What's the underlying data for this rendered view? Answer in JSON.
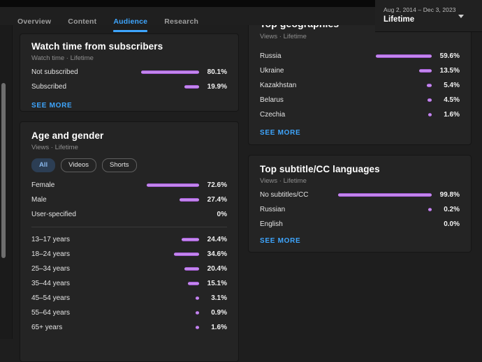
{
  "header": {
    "tabs": [
      {
        "label": "Overview",
        "active": false
      },
      {
        "label": "Content",
        "active": false
      },
      {
        "label": "Audience",
        "active": true
      },
      {
        "label": "Research",
        "active": false
      }
    ],
    "date_range": {
      "range": "Aug 2, 2014 – Dec 3, 2023",
      "preset": "Lifetime"
    }
  },
  "cards": {
    "watch_time": {
      "title": "Watch time from subscribers",
      "subtitle": "Watch time · Lifetime",
      "rows": [
        {
          "label": "Not subscribed",
          "value": "80.1%",
          "pct": 80.1
        },
        {
          "label": "Subscribed",
          "value": "19.9%",
          "pct": 19.9
        }
      ],
      "see_more": "SEE MORE"
    },
    "age_gender": {
      "title": "Age and gender",
      "subtitle": "Views · Lifetime",
      "chips": [
        {
          "label": "All",
          "selected": true
        },
        {
          "label": "Videos",
          "selected": false
        },
        {
          "label": "Shorts",
          "selected": false
        }
      ],
      "gender_rows": [
        {
          "label": "Female",
          "value": "72.6%",
          "pct": 72.6
        },
        {
          "label": "Male",
          "value": "27.4%",
          "pct": 27.4
        },
        {
          "label": "User-specified",
          "value": "0%",
          "pct": 0
        }
      ],
      "age_rows": [
        {
          "label": "13–17 years",
          "value": "24.4%",
          "pct": 24.4
        },
        {
          "label": "18–24 years",
          "value": "34.6%",
          "pct": 34.6
        },
        {
          "label": "25–34 years",
          "value": "20.4%",
          "pct": 20.4
        },
        {
          "label": "35–44 years",
          "value": "15.1%",
          "pct": 15.1
        },
        {
          "label": "45–54 years",
          "value": "3.1%",
          "pct": 3.1
        },
        {
          "label": "55–64 years",
          "value": "0.9%",
          "pct": 0.9
        },
        {
          "label": "65+ years",
          "value": "1.6%",
          "pct": 1.6
        }
      ]
    },
    "geographies": {
      "title": "Top geographies",
      "subtitle": "Views · Lifetime",
      "rows": [
        {
          "label": "Russia",
          "value": "59.6%",
          "pct": 59.6
        },
        {
          "label": "Ukraine",
          "value": "13.5%",
          "pct": 13.5
        },
        {
          "label": "Kazakhstan",
          "value": "5.4%",
          "pct": 5.4
        },
        {
          "label": "Belarus",
          "value": "4.5%",
          "pct": 4.5
        },
        {
          "label": "Czechia",
          "value": "1.6%",
          "pct": 1.6
        }
      ],
      "see_more": "SEE MORE"
    },
    "subtitles": {
      "title": "Top subtitle/CC languages",
      "subtitle": "Views · Lifetime",
      "rows": [
        {
          "label": "No subtitles/CC",
          "value": "99.8%",
          "pct": 99.8
        },
        {
          "label": "Russian",
          "value": "0.2%",
          "pct": 0.2
        },
        {
          "label": "English",
          "value": "0.0%",
          "pct": 0
        }
      ],
      "see_more": "SEE MORE"
    }
  },
  "colors": {
    "accent_blue": "#3ea6ff",
    "bar_purple_dark": "#9d4fd0",
    "bar_purple_light": "#c98ff2"
  }
}
